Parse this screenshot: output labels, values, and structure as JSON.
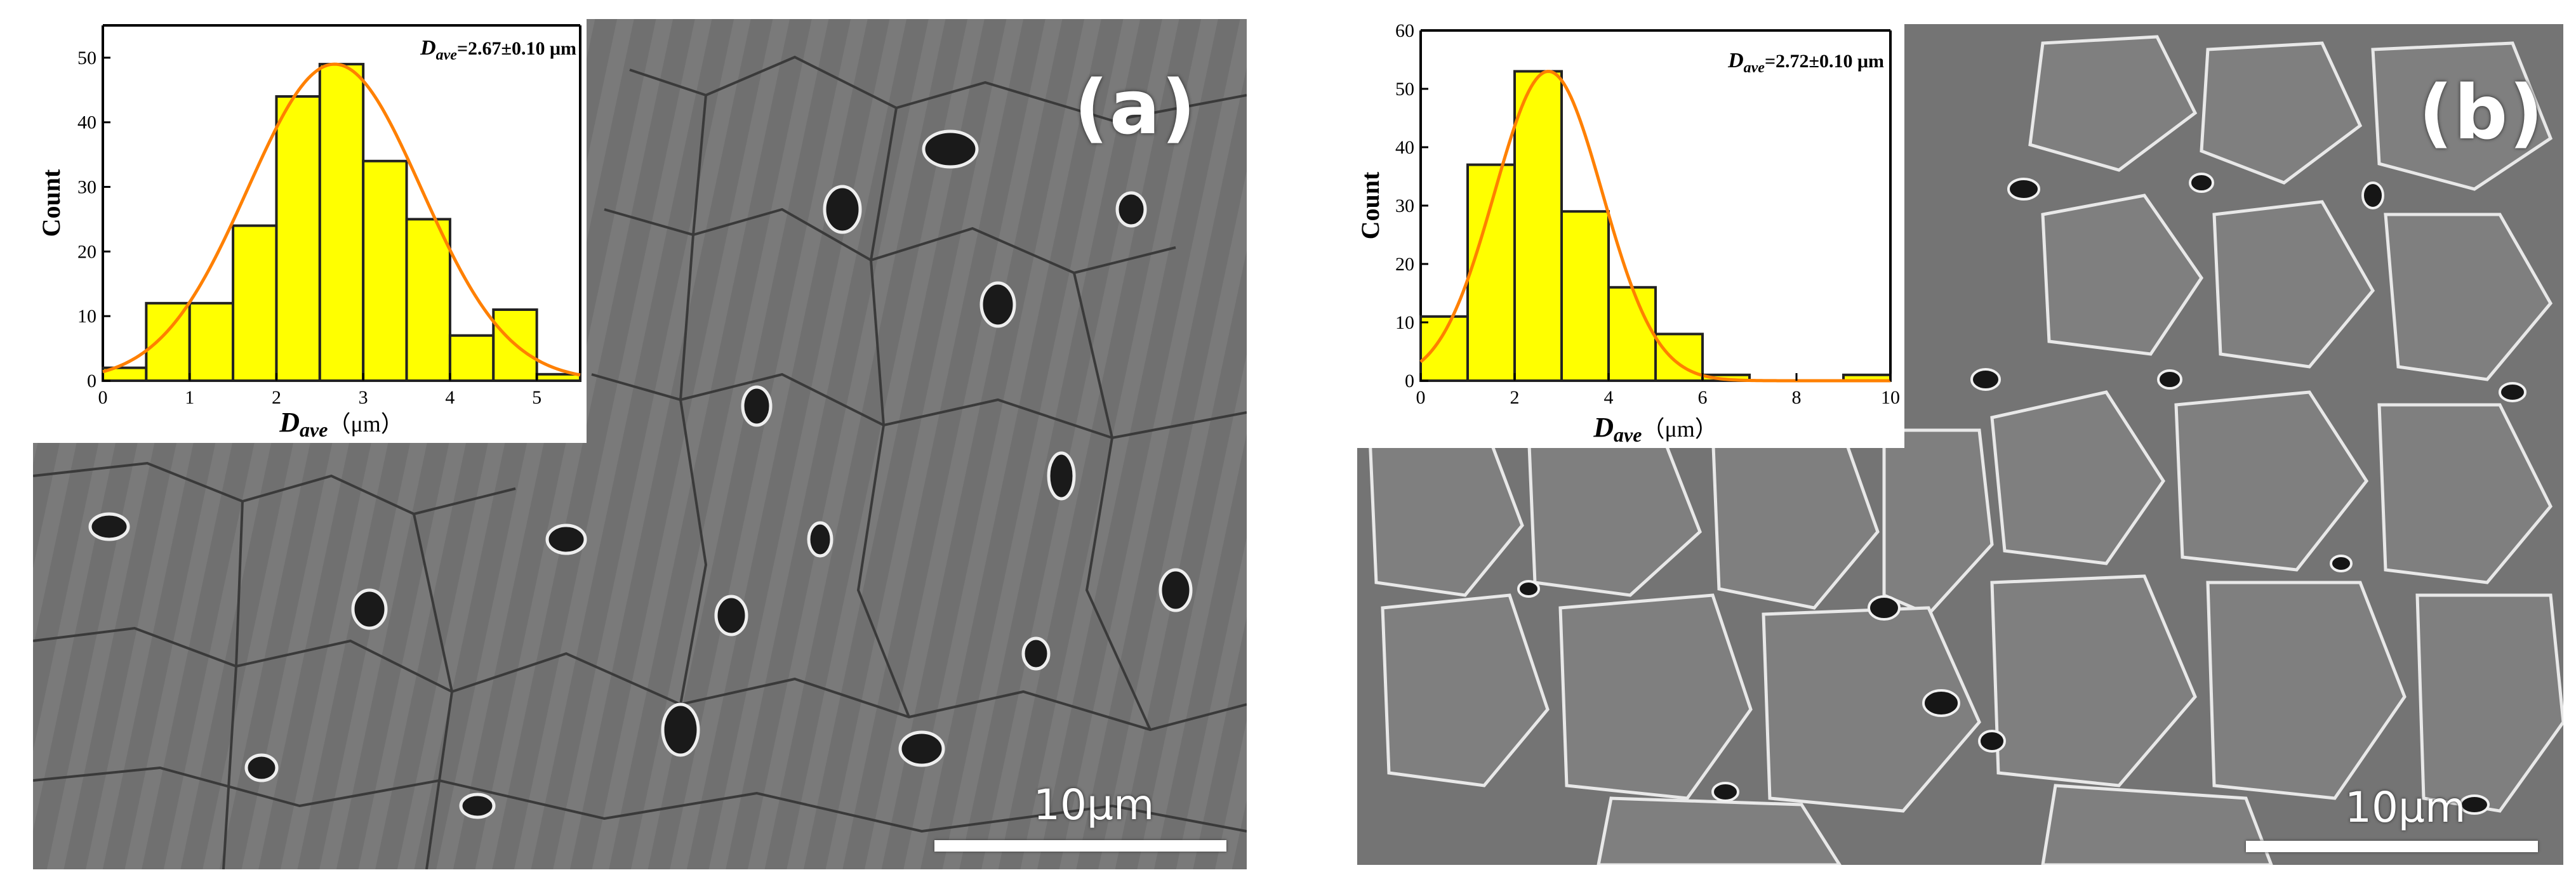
{
  "panels": [
    {
      "label": "(a)",
      "scale_bar": "10μm",
      "chart_data": {
        "type": "bar",
        "subtype": "histogram-with-gaussian-fit",
        "annotation_symbol": "D",
        "annotation_sub": "ave",
        "annotation_value": "=2.67±0.10 μm",
        "xlabel_symbol": "D",
        "xlabel_sub": "ave",
        "xlabel_unit": "（μm）",
        "ylabel": "Count",
        "xlim": [
          0,
          5.5
        ],
        "ylim": [
          0,
          55
        ],
        "xticks": [
          0,
          1,
          2,
          3,
          4,
          5
        ],
        "yticks": [
          0,
          10,
          20,
          30,
          40,
          50
        ],
        "bin_width": 0.5,
        "bins": [
          {
            "x0": 0.0,
            "count": 2
          },
          {
            "x0": 0.5,
            "count": 12
          },
          {
            "x0": 1.0,
            "count": 12
          },
          {
            "x0": 1.5,
            "count": 24
          },
          {
            "x0": 2.0,
            "count": 44
          },
          {
            "x0": 2.5,
            "count": 49
          },
          {
            "x0": 3.0,
            "count": 34
          },
          {
            "x0": 3.5,
            "count": 25
          },
          {
            "x0": 4.0,
            "count": 7
          },
          {
            "x0": 4.5,
            "count": 11
          },
          {
            "x0": 5.0,
            "count": 1
          }
        ],
        "fit": {
          "mean": 2.67,
          "sigma": 1.0,
          "peak": 49
        },
        "colors": {
          "bars": "#ffff00",
          "curve": "#ff8000"
        }
      }
    },
    {
      "label": "(b)",
      "scale_bar": "10μm",
      "chart_data": {
        "type": "bar",
        "subtype": "histogram-with-gaussian-fit",
        "annotation_symbol": "D",
        "annotation_sub": "ave",
        "annotation_value": "=2.72±0.10 μm",
        "xlabel_symbol": "D",
        "xlabel_sub": "ave",
        "xlabel_unit": "（μm）",
        "ylabel": "Count",
        "xlim": [
          0,
          10
        ],
        "ylim": [
          0,
          60
        ],
        "xticks": [
          0,
          2,
          4,
          6,
          8,
          10
        ],
        "yticks": [
          0,
          10,
          20,
          30,
          40,
          50,
          60
        ],
        "bin_width": 1,
        "bins": [
          {
            "x0": 0,
            "count": 11
          },
          {
            "x0": 1,
            "count": 37
          },
          {
            "x0": 2,
            "count": 53
          },
          {
            "x0": 3,
            "count": 29
          },
          {
            "x0": 4,
            "count": 16
          },
          {
            "x0": 5,
            "count": 8
          },
          {
            "x0": 6,
            "count": 1
          },
          {
            "x0": 7,
            "count": 0
          },
          {
            "x0": 8,
            "count": 0
          },
          {
            "x0": 9,
            "count": 1
          }
        ],
        "fit": {
          "mean": 2.72,
          "sigma": 1.15,
          "peak": 53
        },
        "colors": {
          "bars": "#ffff00",
          "curve": "#ff8000"
        }
      }
    }
  ]
}
